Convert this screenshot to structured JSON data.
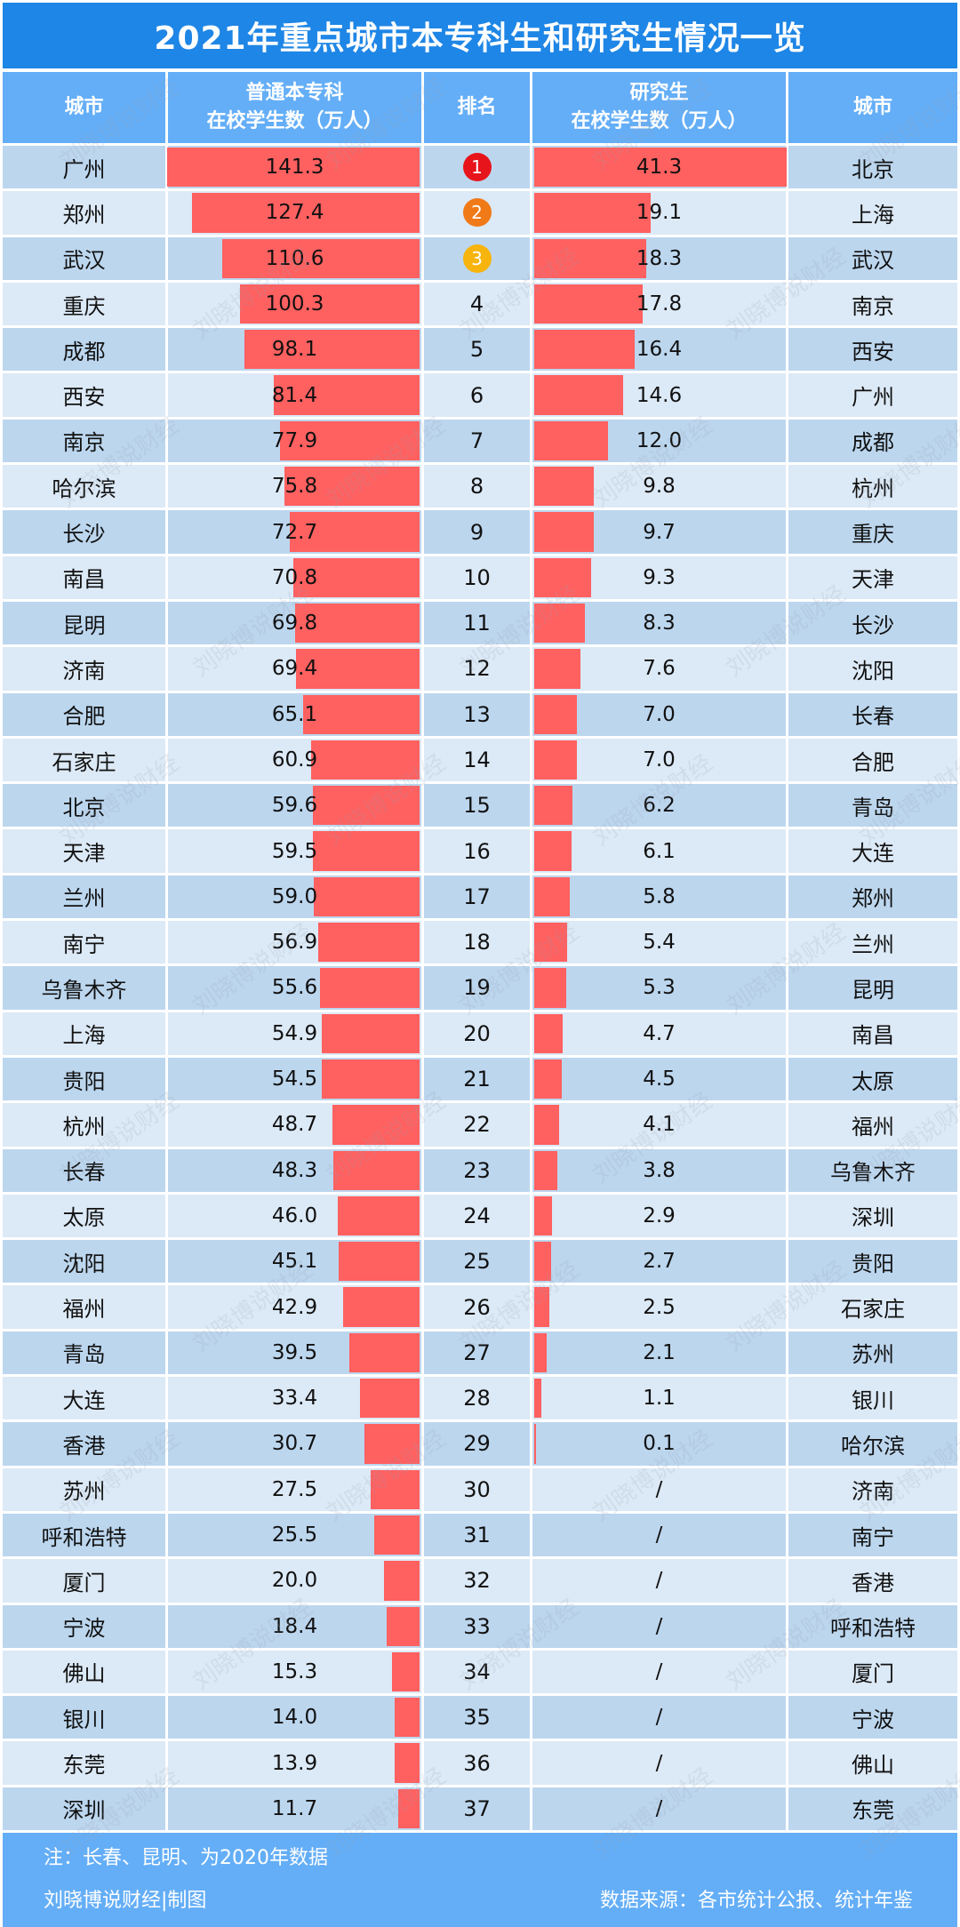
{
  "title": "2021年重点城市本专科生和研究生情况一览",
  "headers": {
    "city_left": "城市",
    "undergrad_line1": "普通本专科",
    "undergrad_line2": "在校学生数（万人）",
    "rank": "排名",
    "grad_line1": "研究生",
    "grad_line2": "在校学生数（万人）",
    "city_right": "城市"
  },
  "colors": {
    "title_bg": "#1e86e6",
    "header_bg": "#64aef7",
    "row_odd": "#bcd6ee",
    "row_even": "#dce9f6",
    "bar": "#ff6060",
    "medal_1": "#e8141b",
    "medal_2": "#f07a18",
    "medal_3": "#f7b40d"
  },
  "rows": [
    {
      "rank": "1",
      "ucity": "广州",
      "uval": "141.3",
      "gval": "41.3",
      "gcity": "北京"
    },
    {
      "rank": "2",
      "ucity": "郑州",
      "uval": "127.4",
      "gval": "19.1",
      "gcity": "上海"
    },
    {
      "rank": "3",
      "ucity": "武汉",
      "uval": "110.6",
      "gval": "18.3",
      "gcity": "武汉"
    },
    {
      "rank": "4",
      "ucity": "重庆",
      "uval": "100.3",
      "gval": "17.8",
      "gcity": "南京"
    },
    {
      "rank": "5",
      "ucity": "成都",
      "uval": "98.1",
      "gval": "16.4",
      "gcity": "西安"
    },
    {
      "rank": "6",
      "ucity": "西安",
      "uval": "81.4",
      "gval": "14.6",
      "gcity": "广州"
    },
    {
      "rank": "7",
      "ucity": "南京",
      "uval": "77.9",
      "gval": "12.0",
      "gcity": "成都"
    },
    {
      "rank": "8",
      "ucity": "哈尔滨",
      "uval": "75.8",
      "gval": "9.8",
      "gcity": "杭州"
    },
    {
      "rank": "9",
      "ucity": "长沙",
      "uval": "72.7",
      "gval": "9.7",
      "gcity": "重庆"
    },
    {
      "rank": "10",
      "ucity": "南昌",
      "uval": "70.8",
      "gval": "9.3",
      "gcity": "天津"
    },
    {
      "rank": "11",
      "ucity": "昆明",
      "uval": "69.8",
      "gval": "8.3",
      "gcity": "长沙"
    },
    {
      "rank": "12",
      "ucity": "济南",
      "uval": "69.4",
      "gval": "7.6",
      "gcity": "沈阳"
    },
    {
      "rank": "13",
      "ucity": "合肥",
      "uval": "65.1",
      "gval": "7.0",
      "gcity": "长春"
    },
    {
      "rank": "14",
      "ucity": "石家庄",
      "uval": "60.9",
      "gval": "7.0",
      "gcity": "合肥"
    },
    {
      "rank": "15",
      "ucity": "北京",
      "uval": "59.6",
      "gval": "6.2",
      "gcity": "青岛"
    },
    {
      "rank": "16",
      "ucity": "天津",
      "uval": "59.5",
      "gval": "6.1",
      "gcity": "大连"
    },
    {
      "rank": "17",
      "ucity": "兰州",
      "uval": "59.0",
      "gval": "5.8",
      "gcity": "郑州"
    },
    {
      "rank": "18",
      "ucity": "南宁",
      "uval": "56.9",
      "gval": "5.4",
      "gcity": "兰州"
    },
    {
      "rank": "19",
      "ucity": "乌鲁木齐",
      "uval": "55.6",
      "gval": "5.3",
      "gcity": "昆明"
    },
    {
      "rank": "20",
      "ucity": "上海",
      "uval": "54.9",
      "gval": "4.7",
      "gcity": "南昌"
    },
    {
      "rank": "21",
      "ucity": "贵阳",
      "uval": "54.5",
      "gval": "4.5",
      "gcity": "太原"
    },
    {
      "rank": "22",
      "ucity": "杭州",
      "uval": "48.7",
      "gval": "4.1",
      "gcity": "福州"
    },
    {
      "rank": "23",
      "ucity": "长春",
      "uval": "48.3",
      "gval": "3.8",
      "gcity": "乌鲁木齐"
    },
    {
      "rank": "24",
      "ucity": "太原",
      "uval": "46.0",
      "gval": "2.9",
      "gcity": "深圳"
    },
    {
      "rank": "25",
      "ucity": "沈阳",
      "uval": "45.1",
      "gval": "2.7",
      "gcity": "贵阳"
    },
    {
      "rank": "26",
      "ucity": "福州",
      "uval": "42.9",
      "gval": "2.5",
      "gcity": "石家庄"
    },
    {
      "rank": "27",
      "ucity": "青岛",
      "uval": "39.5",
      "gval": "2.1",
      "gcity": "苏州"
    },
    {
      "rank": "28",
      "ucity": "大连",
      "uval": "33.4",
      "gval": "1.1",
      "gcity": "银川"
    },
    {
      "rank": "29",
      "ucity": "香港",
      "uval": "30.7",
      "gval": "0.1",
      "gcity": "哈尔滨"
    },
    {
      "rank": "30",
      "ucity": "苏州",
      "uval": "27.5",
      "gval": "/",
      "gcity": "济南"
    },
    {
      "rank": "31",
      "ucity": "呼和浩特",
      "uval": "25.5",
      "gval": "/",
      "gcity": "南宁"
    },
    {
      "rank": "32",
      "ucity": "厦门",
      "uval": "20.0",
      "gval": "/",
      "gcity": "香港"
    },
    {
      "rank": "33",
      "ucity": "宁波",
      "uval": "18.4",
      "gval": "/",
      "gcity": "呼和浩特"
    },
    {
      "rank": "34",
      "ucity": "佛山",
      "uval": "15.3",
      "gval": "/",
      "gcity": "厦门"
    },
    {
      "rank": "35",
      "ucity": "银川",
      "uval": "14.0",
      "gval": "/",
      "gcity": "宁波"
    },
    {
      "rank": "36",
      "ucity": "东莞",
      "uval": "13.9",
      "gval": "/",
      "gcity": "佛山"
    },
    {
      "rank": "37",
      "ucity": "深圳",
      "uval": "11.7",
      "gval": "/",
      "gcity": "东莞"
    }
  ],
  "footer": {
    "note": "注：长春、昆明、为2020年数据",
    "maker": "刘晓博说财经|制图",
    "source": "数据来源：各市统计公报、统计年鉴"
  },
  "watermark": "刘晓博说财经",
  "chart_data": {
    "type": "bar",
    "title": "2021年重点城市本专科生和研究生情况一览",
    "layout": "butterfly table with horizontal bars, rank in center",
    "unit": "万人",
    "series": [
      {
        "name": "普通本专科在校学生数（万人）",
        "categories": [
          "广州",
          "郑州",
          "武汉",
          "重庆",
          "成都",
          "西安",
          "南京",
          "哈尔滨",
          "长沙",
          "南昌",
          "昆明",
          "济南",
          "合肥",
          "石家庄",
          "北京",
          "天津",
          "兰州",
          "南宁",
          "乌鲁木齐",
          "上海",
          "贵阳",
          "杭州",
          "长春",
          "太原",
          "沈阳",
          "福州",
          "青岛",
          "大连",
          "香港",
          "苏州",
          "呼和浩特",
          "厦门",
          "宁波",
          "佛山",
          "银川",
          "东莞",
          "深圳"
        ],
        "values": [
          141.3,
          127.4,
          110.6,
          100.3,
          98.1,
          81.4,
          77.9,
          75.8,
          72.7,
          70.8,
          69.8,
          69.4,
          65.1,
          60.9,
          59.6,
          59.5,
          59.0,
          56.9,
          55.6,
          54.9,
          54.5,
          48.7,
          48.3,
          46.0,
          45.1,
          42.9,
          39.5,
          33.4,
          30.7,
          27.5,
          25.5,
          20.0,
          18.4,
          15.3,
          14.0,
          13.9,
          11.7
        ]
      },
      {
        "name": "研究生在校学生数（万人）",
        "categories": [
          "北京",
          "上海",
          "武汉",
          "南京",
          "西安",
          "广州",
          "成都",
          "杭州",
          "重庆",
          "天津",
          "长沙",
          "沈阳",
          "长春",
          "合肥",
          "青岛",
          "大连",
          "郑州",
          "兰州",
          "昆明",
          "南昌",
          "太原",
          "福州",
          "乌鲁木齐",
          "深圳",
          "贵阳",
          "石家庄",
          "苏州",
          "银川",
          "哈尔滨",
          "济南",
          "南宁",
          "香港",
          "呼和浩特",
          "厦门",
          "宁波",
          "佛山",
          "东莞"
        ],
        "values": [
          41.3,
          19.1,
          18.3,
          17.8,
          16.4,
          14.6,
          12.0,
          9.8,
          9.7,
          9.3,
          8.3,
          7.6,
          7.0,
          7.0,
          6.2,
          6.1,
          5.8,
          5.4,
          5.3,
          4.7,
          4.5,
          4.1,
          3.8,
          2.9,
          2.7,
          2.5,
          2.1,
          1.1,
          0.1,
          null,
          null,
          null,
          null,
          null,
          null,
          null,
          null
        ]
      }
    ],
    "ranks": [
      1,
      2,
      3,
      4,
      5,
      6,
      7,
      8,
      9,
      10,
      11,
      12,
      13,
      14,
      15,
      16,
      17,
      18,
      19,
      20,
      21,
      22,
      23,
      24,
      25,
      26,
      27,
      28,
      29,
      30,
      31,
      32,
      33,
      34,
      35,
      36,
      37
    ],
    "note": "注：长春、昆明、为2020年数据",
    "source": "数据来源：各市统计公报、统计年鉴",
    "grid": false,
    "legend": "none"
  }
}
